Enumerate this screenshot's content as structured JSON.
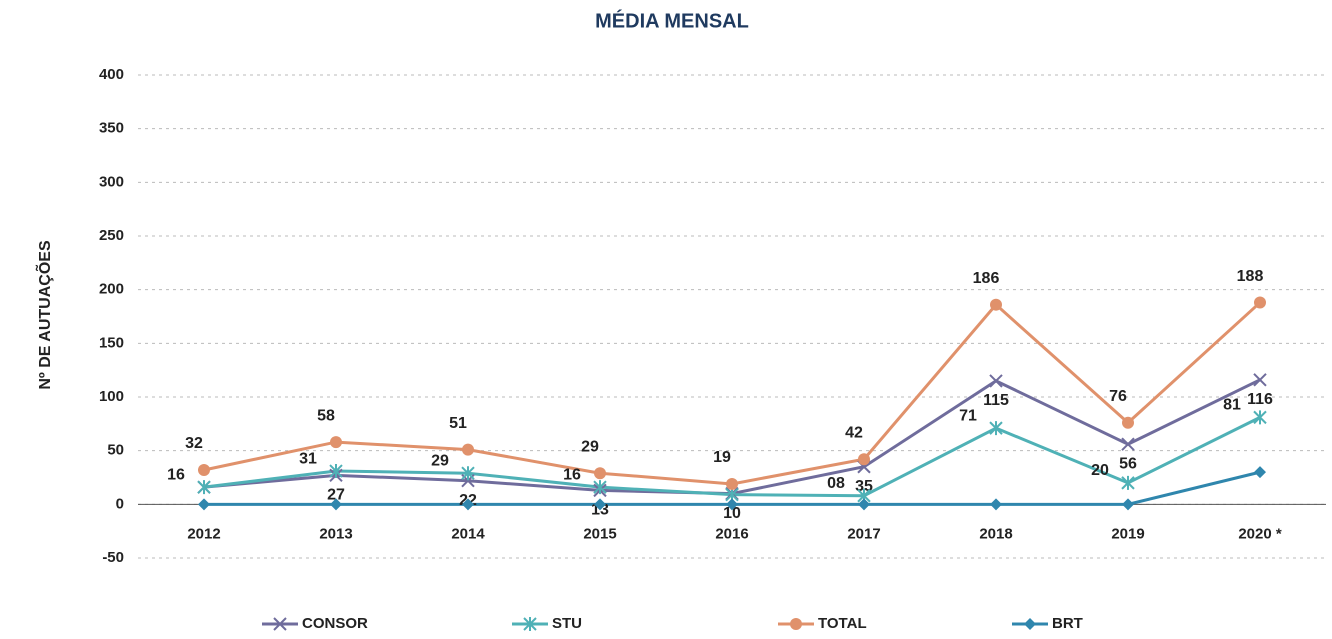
{
  "chart_data": {
    "type": "line",
    "title": "MÉDIA MENSAL",
    "y_label": "Nº DE AUTUAÇÕES",
    "categories": [
      "2012",
      "2013",
      "2014",
      "2015",
      "2016",
      "2017",
      "2018",
      "2019",
      "2020 *"
    ],
    "ylim": [
      -50,
      400
    ],
    "yticks": [
      -50,
      0,
      50,
      100,
      150,
      200,
      250,
      300,
      350,
      400
    ],
    "grid": true,
    "legend": "bottom",
    "series": [
      {
        "name": "CONSOR",
        "color": "#6f6c9c",
        "marker": "x",
        "values": [
          16,
          27,
          22,
          13,
          10,
          35,
          115,
          56,
          116
        ],
        "value_labels": [
          null,
          "27",
          "22",
          "13",
          "10",
          "35",
          "115",
          "56",
          "116"
        ]
      },
      {
        "name": "STU",
        "color": "#4fb1b6",
        "marker": "star",
        "values": [
          16,
          31,
          29,
          16,
          9,
          8,
          71,
          20,
          81
        ],
        "value_labels": [
          "16",
          "31",
          "29",
          "16",
          null,
          "08",
          "71",
          "20",
          "81"
        ]
      },
      {
        "name": "TOTAL",
        "color": "#e0916b",
        "marker": "circle",
        "values": [
          32,
          58,
          51,
          29,
          19,
          42,
          186,
          76,
          188
        ],
        "value_labels": [
          "32",
          "58",
          "51",
          "29",
          "19",
          "42",
          "186",
          "76",
          "188"
        ]
      },
      {
        "name": "BRT",
        "color": "#2f86ad",
        "marker": "diamond",
        "values": [
          0,
          0,
          0,
          0,
          0,
          0,
          0,
          0,
          30
        ],
        "value_labels": [
          null,
          null,
          null,
          null,
          null,
          null,
          null,
          null,
          null
        ]
      }
    ]
  }
}
